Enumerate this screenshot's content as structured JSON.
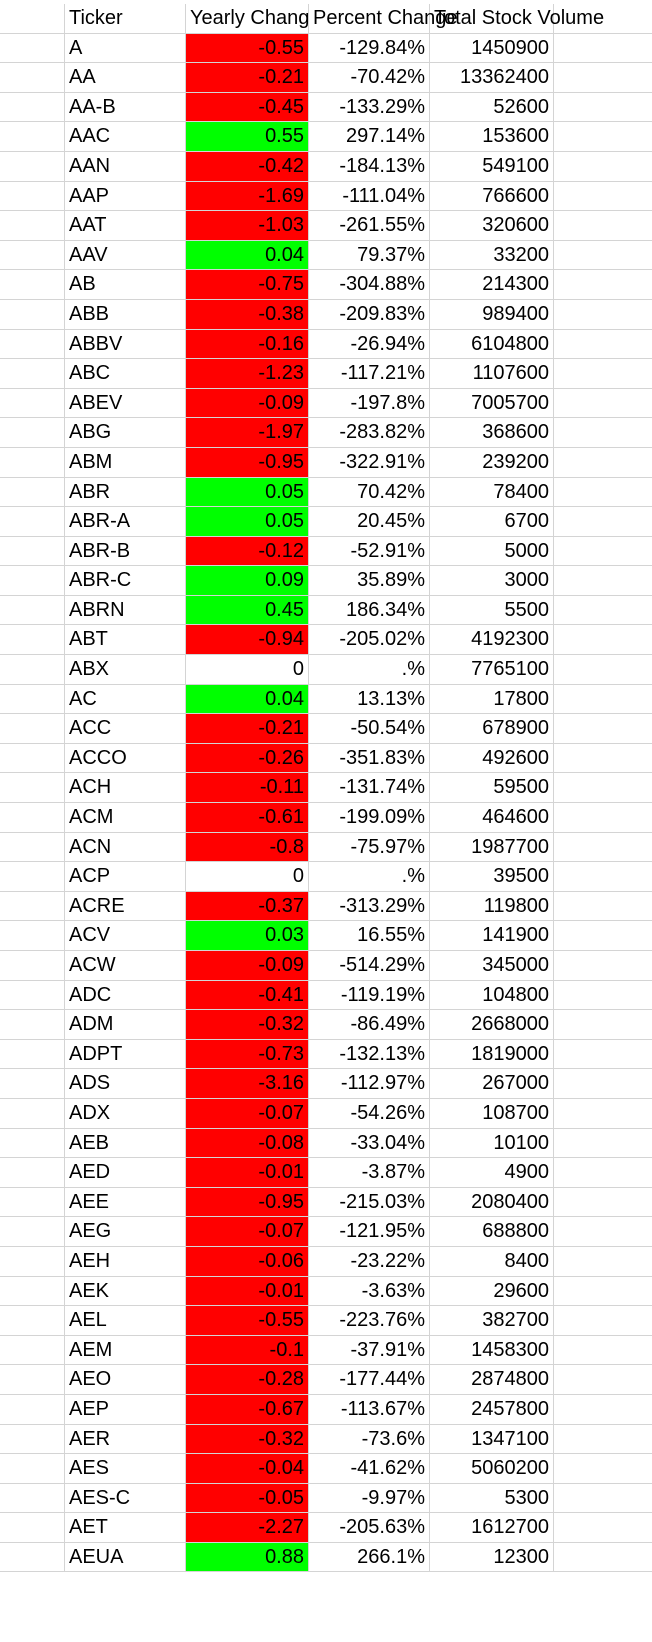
{
  "columns": [
    "Ticker",
    "Yearly Change",
    "Percent Change",
    "Total Stock Volume"
  ],
  "colors": {
    "positive": "#00ff00",
    "negative": "#ff0000",
    "zero": "#ffffff",
    "grid": "#d4d4d4"
  },
  "rows": [
    [
      "A",
      "-0.55",
      "-129.84%",
      "1450900"
    ],
    [
      "AA",
      "-0.21",
      "-70.42%",
      "13362400"
    ],
    [
      "AA-B",
      "-0.45",
      "-133.29%",
      "52600"
    ],
    [
      "AAC",
      "0.55",
      "297.14%",
      "153600"
    ],
    [
      "AAN",
      "-0.42",
      "-184.13%",
      "549100"
    ],
    [
      "AAP",
      "-1.69",
      "-111.04%",
      "766600"
    ],
    [
      "AAT",
      "-1.03",
      "-261.55%",
      "320600"
    ],
    [
      "AAV",
      "0.04",
      "79.37%",
      "33200"
    ],
    [
      "AB",
      "-0.75",
      "-304.88%",
      "214300"
    ],
    [
      "ABB",
      "-0.38",
      "-209.83%",
      "989400"
    ],
    [
      "ABBV",
      "-0.16",
      "-26.94%",
      "6104800"
    ],
    [
      "ABC",
      "-1.23",
      "-117.21%",
      "1107600"
    ],
    [
      "ABEV",
      "-0.09",
      "-197.8%",
      "7005700"
    ],
    [
      "ABG",
      "-1.97",
      "-283.82%",
      "368600"
    ],
    [
      "ABM",
      "-0.95",
      "-322.91%",
      "239200"
    ],
    [
      "ABR",
      "0.05",
      "70.42%",
      "78400"
    ],
    [
      "ABR-A",
      "0.05",
      "20.45%",
      "6700"
    ],
    [
      "ABR-B",
      "-0.12",
      "-52.91%",
      "5000"
    ],
    [
      "ABR-C",
      "0.09",
      "35.89%",
      "3000"
    ],
    [
      "ABRN",
      "0.45",
      "186.34%",
      "5500"
    ],
    [
      "ABT",
      "-0.94",
      "-205.02%",
      "4192300"
    ],
    [
      "ABX",
      "0",
      ".%",
      "7765100"
    ],
    [
      "AC",
      "0.04",
      "13.13%",
      "17800"
    ],
    [
      "ACC",
      "-0.21",
      "-50.54%",
      "678900"
    ],
    [
      "ACCO",
      "-0.26",
      "-351.83%",
      "492600"
    ],
    [
      "ACH",
      "-0.11",
      "-131.74%",
      "59500"
    ],
    [
      "ACM",
      "-0.61",
      "-199.09%",
      "464600"
    ],
    [
      "ACN",
      "-0.8",
      "-75.97%",
      "1987700"
    ],
    [
      "ACP",
      "0",
      ".%",
      "39500"
    ],
    [
      "ACRE",
      "-0.37",
      "-313.29%",
      "119800"
    ],
    [
      "ACV",
      "0.03",
      "16.55%",
      "141900"
    ],
    [
      "ACW",
      "-0.09",
      "-514.29%",
      "345000"
    ],
    [
      "ADC",
      "-0.41",
      "-119.19%",
      "104800"
    ],
    [
      "ADM",
      "-0.32",
      "-86.49%",
      "2668000"
    ],
    [
      "ADPT",
      "-0.73",
      "-132.13%",
      "1819000"
    ],
    [
      "ADS",
      "-3.16",
      "-112.97%",
      "267000"
    ],
    [
      "ADX",
      "-0.07",
      "-54.26%",
      "108700"
    ],
    [
      "AEB",
      "-0.08",
      "-33.04%",
      "10100"
    ],
    [
      "AED",
      "-0.01",
      "-3.87%",
      "4900"
    ],
    [
      "AEE",
      "-0.95",
      "-215.03%",
      "2080400"
    ],
    [
      "AEG",
      "-0.07",
      "-121.95%",
      "688800"
    ],
    [
      "AEH",
      "-0.06",
      "-23.22%",
      "8400"
    ],
    [
      "AEK",
      "-0.01",
      "-3.63%",
      "29600"
    ],
    [
      "AEL",
      "-0.55",
      "-223.76%",
      "382700"
    ],
    [
      "AEM",
      "-0.1",
      "-37.91%",
      "1458300"
    ],
    [
      "AEO",
      "-0.28",
      "-177.44%",
      "2874800"
    ],
    [
      "AEP",
      "-0.67",
      "-113.67%",
      "2457800"
    ],
    [
      "AER",
      "-0.32",
      "-73.6%",
      "1347100"
    ],
    [
      "AES",
      "-0.04",
      "-41.62%",
      "5060200"
    ],
    [
      "AES-C",
      "-0.05",
      "-9.97%",
      "5300"
    ],
    [
      "AET",
      "-2.27",
      "-205.63%",
      "1612700"
    ],
    [
      "AEUA",
      "0.88",
      "266.1%",
      "12300"
    ]
  ]
}
